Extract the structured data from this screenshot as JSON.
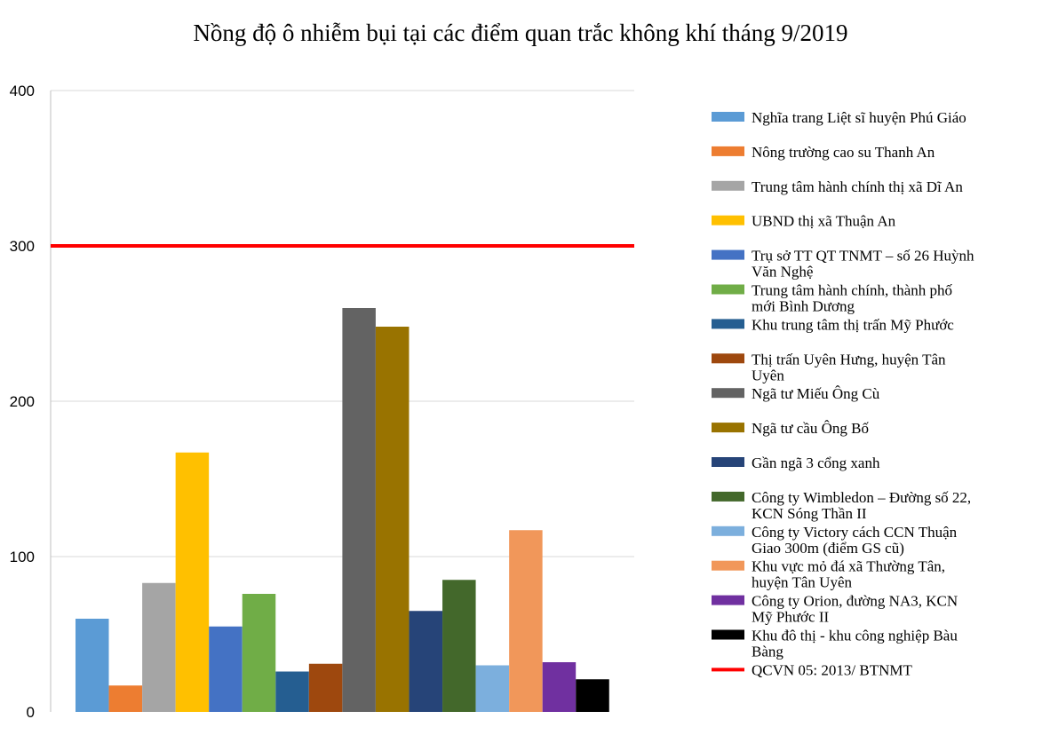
{
  "chart_data": {
    "type": "bar",
    "title": "Nồng độ ô nhiễm bụi tại các điểm quan trắc không khí tháng 9/2019",
    "xlabel": "",
    "ylabel": "",
    "ylim": [
      0,
      400
    ],
    "yticks": [
      "0",
      "100",
      "200",
      "300",
      "400"
    ],
    "grid": true,
    "legend_position": "right",
    "series": [
      {
        "name": "Nghĩa trang Liệt sĩ huyện Phú Giáo",
        "value": 60,
        "color": "#5b9bd5"
      },
      {
        "name": "Nông trường cao su Thanh An",
        "value": 17,
        "color": "#ed7d31"
      },
      {
        "name": "Trung tâm hành chính thị xã Dĩ An",
        "value": 83,
        "color": "#a5a5a5"
      },
      {
        "name": "UBND thị xã Thuận An",
        "value": 167,
        "color": "#ffc000"
      },
      {
        "name": "Trụ sở TT QT TNMT – số 26 Huỳnh Văn Nghệ",
        "value": 55,
        "color": "#4472c4"
      },
      {
        "name": "Trung tâm hành chính, thành phố mới Bình Dương",
        "value": 76,
        "color": "#70ad47"
      },
      {
        "name": "Khu trung tâm thị trấn Mỹ Phước",
        "value": 26,
        "color": "#255e91"
      },
      {
        "name": "Thị trấn Uyên Hưng, huyện Tân Uyên",
        "value": 31,
        "color": "#9e480e"
      },
      {
        "name": "Ngã tư Miếu Ông Cù",
        "value": 260,
        "color": "#636363"
      },
      {
        "name": "Ngã tư cầu Ông Bố",
        "value": 248,
        "color": "#997300"
      },
      {
        "name": "Gần ngã 3 cổng xanh",
        "value": 65,
        "color": "#264478"
      },
      {
        "name": "Công ty Wimbledon – Đường số 22, KCN Sóng Thần II",
        "value": 85,
        "color": "#43682b"
      },
      {
        "name": "Công ty Victory cách CCN Thuận Giao 300m (điểm GS cũ)",
        "value": 30,
        "color": "#7cafdd"
      },
      {
        "name": "Khu vực mỏ đá xã Thường Tân, huyện Tân Uyên",
        "value": 117,
        "color": "#f1975a"
      },
      {
        "name": "Công ty Orion, đường NA3, KCN Mỹ Phước II",
        "value": 32,
        "color": "#7030a0"
      },
      {
        "name": "Khu đô thị - khu công nghiệp Bàu Bàng",
        "value": 21,
        "color": "#000000"
      }
    ],
    "reference_line": {
      "name": "QCVN 05: 2013/ BTNMT",
      "value": 300,
      "color": "#ff0000"
    },
    "legend_lines": [
      [
        "Nghĩa trang Liệt sĩ huyện Phú Giáo"
      ],
      [
        "Nông trường cao su Thanh An"
      ],
      [
        "Trung tâm hành chính thị xã Dĩ An"
      ],
      [
        "UBND thị xã Thuận An"
      ],
      [
        "Trụ sở TT QT TNMT – số 26 Huỳnh",
        "Văn Nghệ"
      ],
      [
        "Trung tâm hành chính, thành phố",
        "mới Bình Dương"
      ],
      [
        "Khu trung tâm thị trấn Mỹ Phước"
      ],
      [
        "Thị trấn Uyên Hưng, huyện Tân",
        "Uyên"
      ],
      [
        "Ngã tư Miếu Ông Cù"
      ],
      [
        "Ngã tư cầu Ông Bố"
      ],
      [
        "Gần ngã 3 cổng xanh"
      ],
      [
        "Công ty Wimbledon – Đường số 22,",
        "KCN Sóng Thần II"
      ],
      [
        "Công ty Victory cách CCN Thuận",
        "Giao 300m (điểm GS cũ)"
      ],
      [
        "Khu vực mỏ đá xã Thường Tân,",
        "huyện Tân Uyên"
      ],
      [
        "Công ty Orion, đường NA3, KCN",
        "Mỹ Phước II"
      ],
      [
        "Khu đô thị - khu công nghiệp Bàu",
        "Bàng"
      ],
      [
        "QCVN 05: 2013/ BTNMT"
      ]
    ]
  }
}
